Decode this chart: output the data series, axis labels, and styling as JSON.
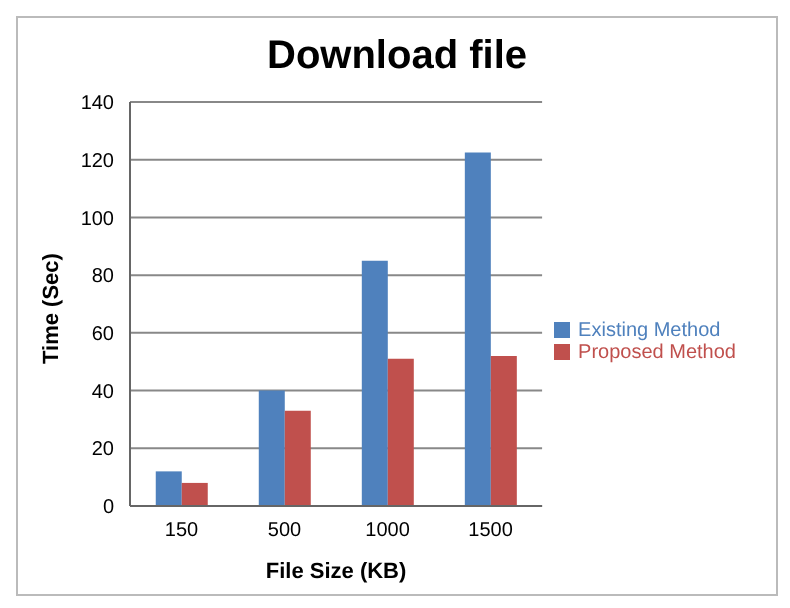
{
  "chart_data": {
    "type": "bar",
    "title": "Download file",
    "xlabel": "File Size (KB)",
    "ylabel": "Time (Sec)",
    "categories": [
      "150",
      "500",
      "1000",
      "1500"
    ],
    "series": [
      {
        "name": "Existing Method",
        "color": "#4f81bd",
        "values": [
          12,
          40,
          85,
          122.5
        ]
      },
      {
        "name": "Proposed Method",
        "color": "#c0504d",
        "values": [
          8,
          33,
          51,
          52
        ]
      }
    ],
    "ylim": [
      0,
      140
    ],
    "yticks": [
      0,
      20,
      40,
      60,
      80,
      100,
      120,
      140
    ],
    "grid": "y",
    "legend": "right"
  }
}
